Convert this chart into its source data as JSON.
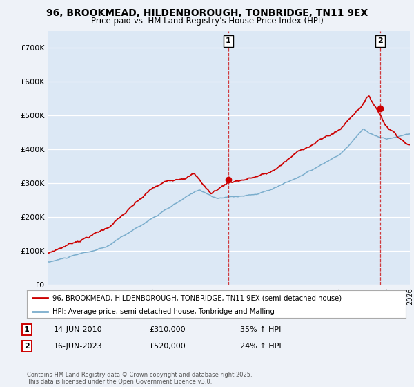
{
  "title": "96, BROOKMEAD, HILDENBOROUGH, TONBRIDGE, TN11 9EX",
  "subtitle": "Price paid vs. HM Land Registry's House Price Index (HPI)",
  "ylim": [
    0,
    750000
  ],
  "yticks": [
    0,
    100000,
    200000,
    300000,
    400000,
    500000,
    600000,
    700000
  ],
  "ytick_labels": [
    "£0",
    "£100K",
    "£200K",
    "£300K",
    "£400K",
    "£500K",
    "£600K",
    "£700K"
  ],
  "background_color": "#eef2f8",
  "plot_bg_color": "#dce8f5",
  "grid_color": "#ffffff",
  "legend_label_red": "96, BROOKMEAD, HILDENBOROUGH, TONBRIDGE, TN11 9EX (semi-detached house)",
  "legend_label_blue": "HPI: Average price, semi-detached house, Tonbridge and Malling",
  "sale1_date": "14-JUN-2010",
  "sale1_price": 310000,
  "sale1_label": "35% ↑ HPI",
  "sale2_date": "16-JUN-2023",
  "sale2_price": 520000,
  "sale2_label": "24% ↑ HPI",
  "footnote": "Contains HM Land Registry data © Crown copyright and database right 2025.\nThis data is licensed under the Open Government Licence v3.0.",
  "red_color": "#cc0000",
  "blue_color": "#7aadcc",
  "sale1_x": 2010.45,
  "sale2_x": 2023.45,
  "xmin": 1995,
  "xmax": 2026
}
